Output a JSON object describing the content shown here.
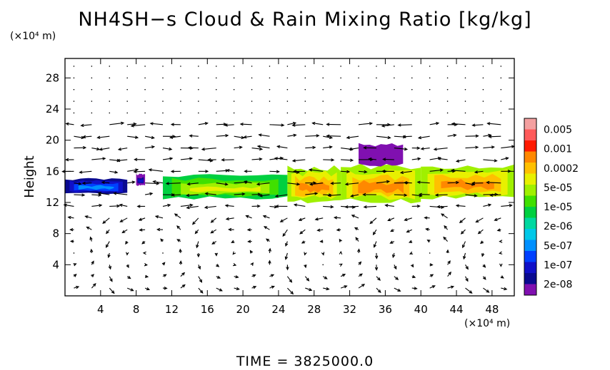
{
  "chart_data": {
    "type": "heatmap",
    "title": "NH4SH−s Cloud & Rain Mixing Ratio [kg/kg]",
    "x_unit": "(×10⁴ m)",
    "y_unit": "(×10⁴ m)",
    "ylabel": "Height",
    "xlabel": "",
    "x_range": [
      0,
      50.5
    ],
    "y_range": [
      0,
      30.5
    ],
    "x_ticks": [
      4,
      8,
      12,
      16,
      20,
      24,
      28,
      32,
      36,
      40,
      44,
      48
    ],
    "y_ticks": [
      4,
      8,
      12,
      16,
      20,
      24,
      28
    ],
    "time_label": "TIME  =  3825000.0",
    "colorbar": {
      "labels": [
        "0.005",
        "0.001",
        "0.0002",
        "5e-05",
        "1e-05",
        "2e-06",
        "5e-07",
        "1e-07",
        "2e-08"
      ],
      "colors": [
        "#f4a0a0",
        "#ff5a5a",
        "#ff1a00",
        "#ff8800",
        "#ffc000",
        "#e8f000",
        "#a0f000",
        "#40e000",
        "#00d040",
        "#00d8a0",
        "#00c8e8",
        "#0090ff",
        "#0040ff",
        "#1010c8",
        "#0a0a90",
        "#8010b0"
      ]
    },
    "cloud_layers": [
      {
        "x": [
          0,
          7
        ],
        "y": [
          13.2,
          15.0
        ],
        "intensity": "5e-07"
      },
      {
        "x": [
          8,
          9
        ],
        "y": [
          14.2,
          15.6
        ],
        "intensity": "1e-07"
      },
      {
        "x": [
          11,
          25
        ],
        "y": [
          12.6,
          15.4
        ],
        "intensity": "5e-05"
      },
      {
        "x": [
          25,
          31
        ],
        "y": [
          12.2,
          16.4
        ],
        "intensity": "0.0002"
      },
      {
        "x": [
          31,
          40
        ],
        "y": [
          12.2,
          16.6
        ],
        "intensity": "0.0002"
      },
      {
        "x": [
          33,
          38
        ],
        "y": [
          16.8,
          19.4
        ],
        "intensity": "2e-08"
      },
      {
        "x": [
          40,
          50.5
        ],
        "y": [
          12.6,
          16.6
        ],
        "intensity": "0.0002"
      }
    ],
    "wind_vectors": "shown"
  }
}
